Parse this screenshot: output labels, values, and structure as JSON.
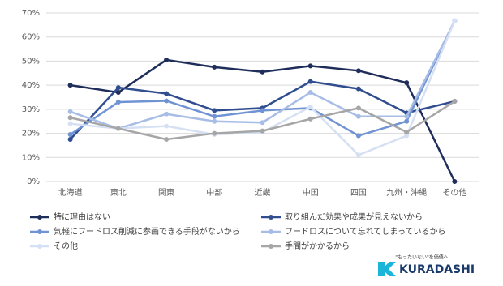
{
  "chart_data": {
    "type": "line",
    "categories": [
      "北海道",
      "東北",
      "関東",
      "中部",
      "近畿",
      "中国",
      "四国",
      "九州・沖縄",
      "その他"
    ],
    "ylim": [
      0,
      70
    ],
    "yticks": [
      {
        "value": 0,
        "label": "0%"
      },
      {
        "value": 10,
        "label": "10%"
      },
      {
        "value": 20,
        "label": "20%"
      },
      {
        "value": 30,
        "label": "30%"
      },
      {
        "value": 40,
        "label": "40%"
      },
      {
        "value": 50,
        "label": "50%"
      },
      {
        "value": 60,
        "label": "60%"
      },
      {
        "value": 70,
        "label": "70%"
      }
    ],
    "grid": true,
    "series": [
      {
        "name": "特に理由はない",
        "color": "#1f2d5a",
        "values": [
          40,
          37,
          50.5,
          47.5,
          45.5,
          48,
          46,
          41,
          0
        ]
      },
      {
        "name": "取り組んだ効果や成果が見えないから",
        "color": "#2f4d8f",
        "values": [
          17.5,
          39,
          36.5,
          29.5,
          30.5,
          41.5,
          38.5,
          28.5,
          33.3
        ]
      },
      {
        "name": "気軽にフードロス削減に参画できる手段がないから",
        "color": "#7093d4",
        "values": [
          19.5,
          33,
          33.5,
          27,
          29.5,
          30.5,
          19,
          25,
          66.7
        ]
      },
      {
        "name": "フードロスについて忘れてしまっているから",
        "color": "#a8bde6",
        "values": [
          29,
          22,
          28,
          25,
          24.5,
          37,
          27,
          27,
          66.7
        ]
      },
      {
        "name": "その他",
        "color": "#d6e0f3",
        "values": [
          24,
          22,
          23,
          19.5,
          20.5,
          31,
          11,
          19,
          66.7
        ]
      },
      {
        "name": "手間がかかるから",
        "color": "#a6a6a6",
        "values": [
          26.5,
          22,
          17.5,
          20,
          21,
          26,
          30.5,
          20.5,
          33.3
        ]
      }
    ]
  },
  "logo": {
    "tagline": "\"もったいない\"を価値へ",
    "name": "KURADASHI"
  }
}
